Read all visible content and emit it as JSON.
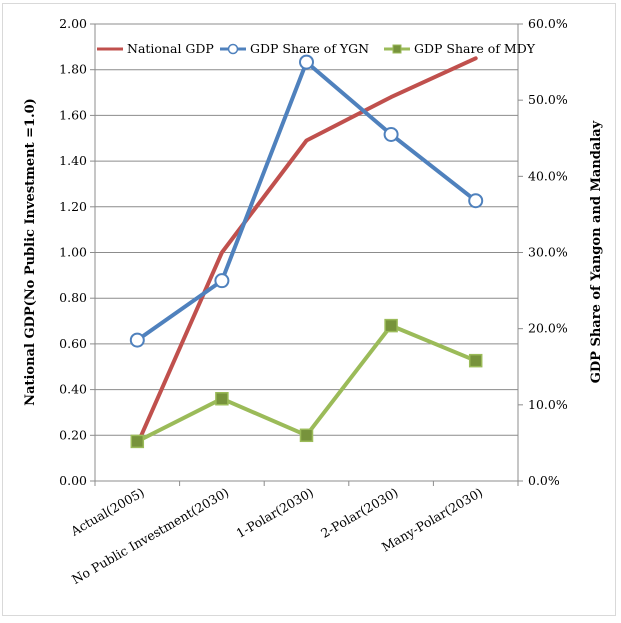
{
  "chart_data": {
    "type": "line",
    "categories": [
      "Actual(2005)",
      "No Public Investment(2030)",
      "1-Polar(2030)",
      "2-Polar(2030)",
      "Many-Polar(2030)"
    ],
    "y_left": {
      "label": "National GDP(No Public Investment =1.0)",
      "ylim": [
        0,
        2.0
      ],
      "ticks": [
        "0.00",
        "0.20",
        "0.40",
        "0.60",
        "0.80",
        "1.00",
        "1.20",
        "1.40",
        "1.60",
        "1.80",
        "2.00"
      ]
    },
    "y_right": {
      "label": "GDP Share of Yangon and Mandalay",
      "ylim": [
        0,
        60
      ],
      "ticks": [
        "0.0%",
        "10.0%",
        "20.0%",
        "30.0%",
        "40.0%",
        "50.0%",
        "60.0%"
      ]
    },
    "series": [
      {
        "name": "National GDP",
        "axis": "left",
        "color": "#c0504d",
        "marker": "none",
        "values": [
          0.16,
          1.0,
          1.49,
          1.68,
          1.85
        ]
      },
      {
        "name": "GDP Share of YGN",
        "axis": "right",
        "color": "#4f81bd",
        "marker": "circle",
        "values": [
          18.5,
          26.3,
          55.0,
          45.5,
          36.8
        ]
      },
      {
        "name": "GDP Share of MDY",
        "axis": "right",
        "color": "#9bbb59",
        "marker": "square",
        "values": [
          5.2,
          10.8,
          6.0,
          20.4,
          15.8
        ]
      }
    ],
    "grid": true,
    "legend": "top"
  }
}
